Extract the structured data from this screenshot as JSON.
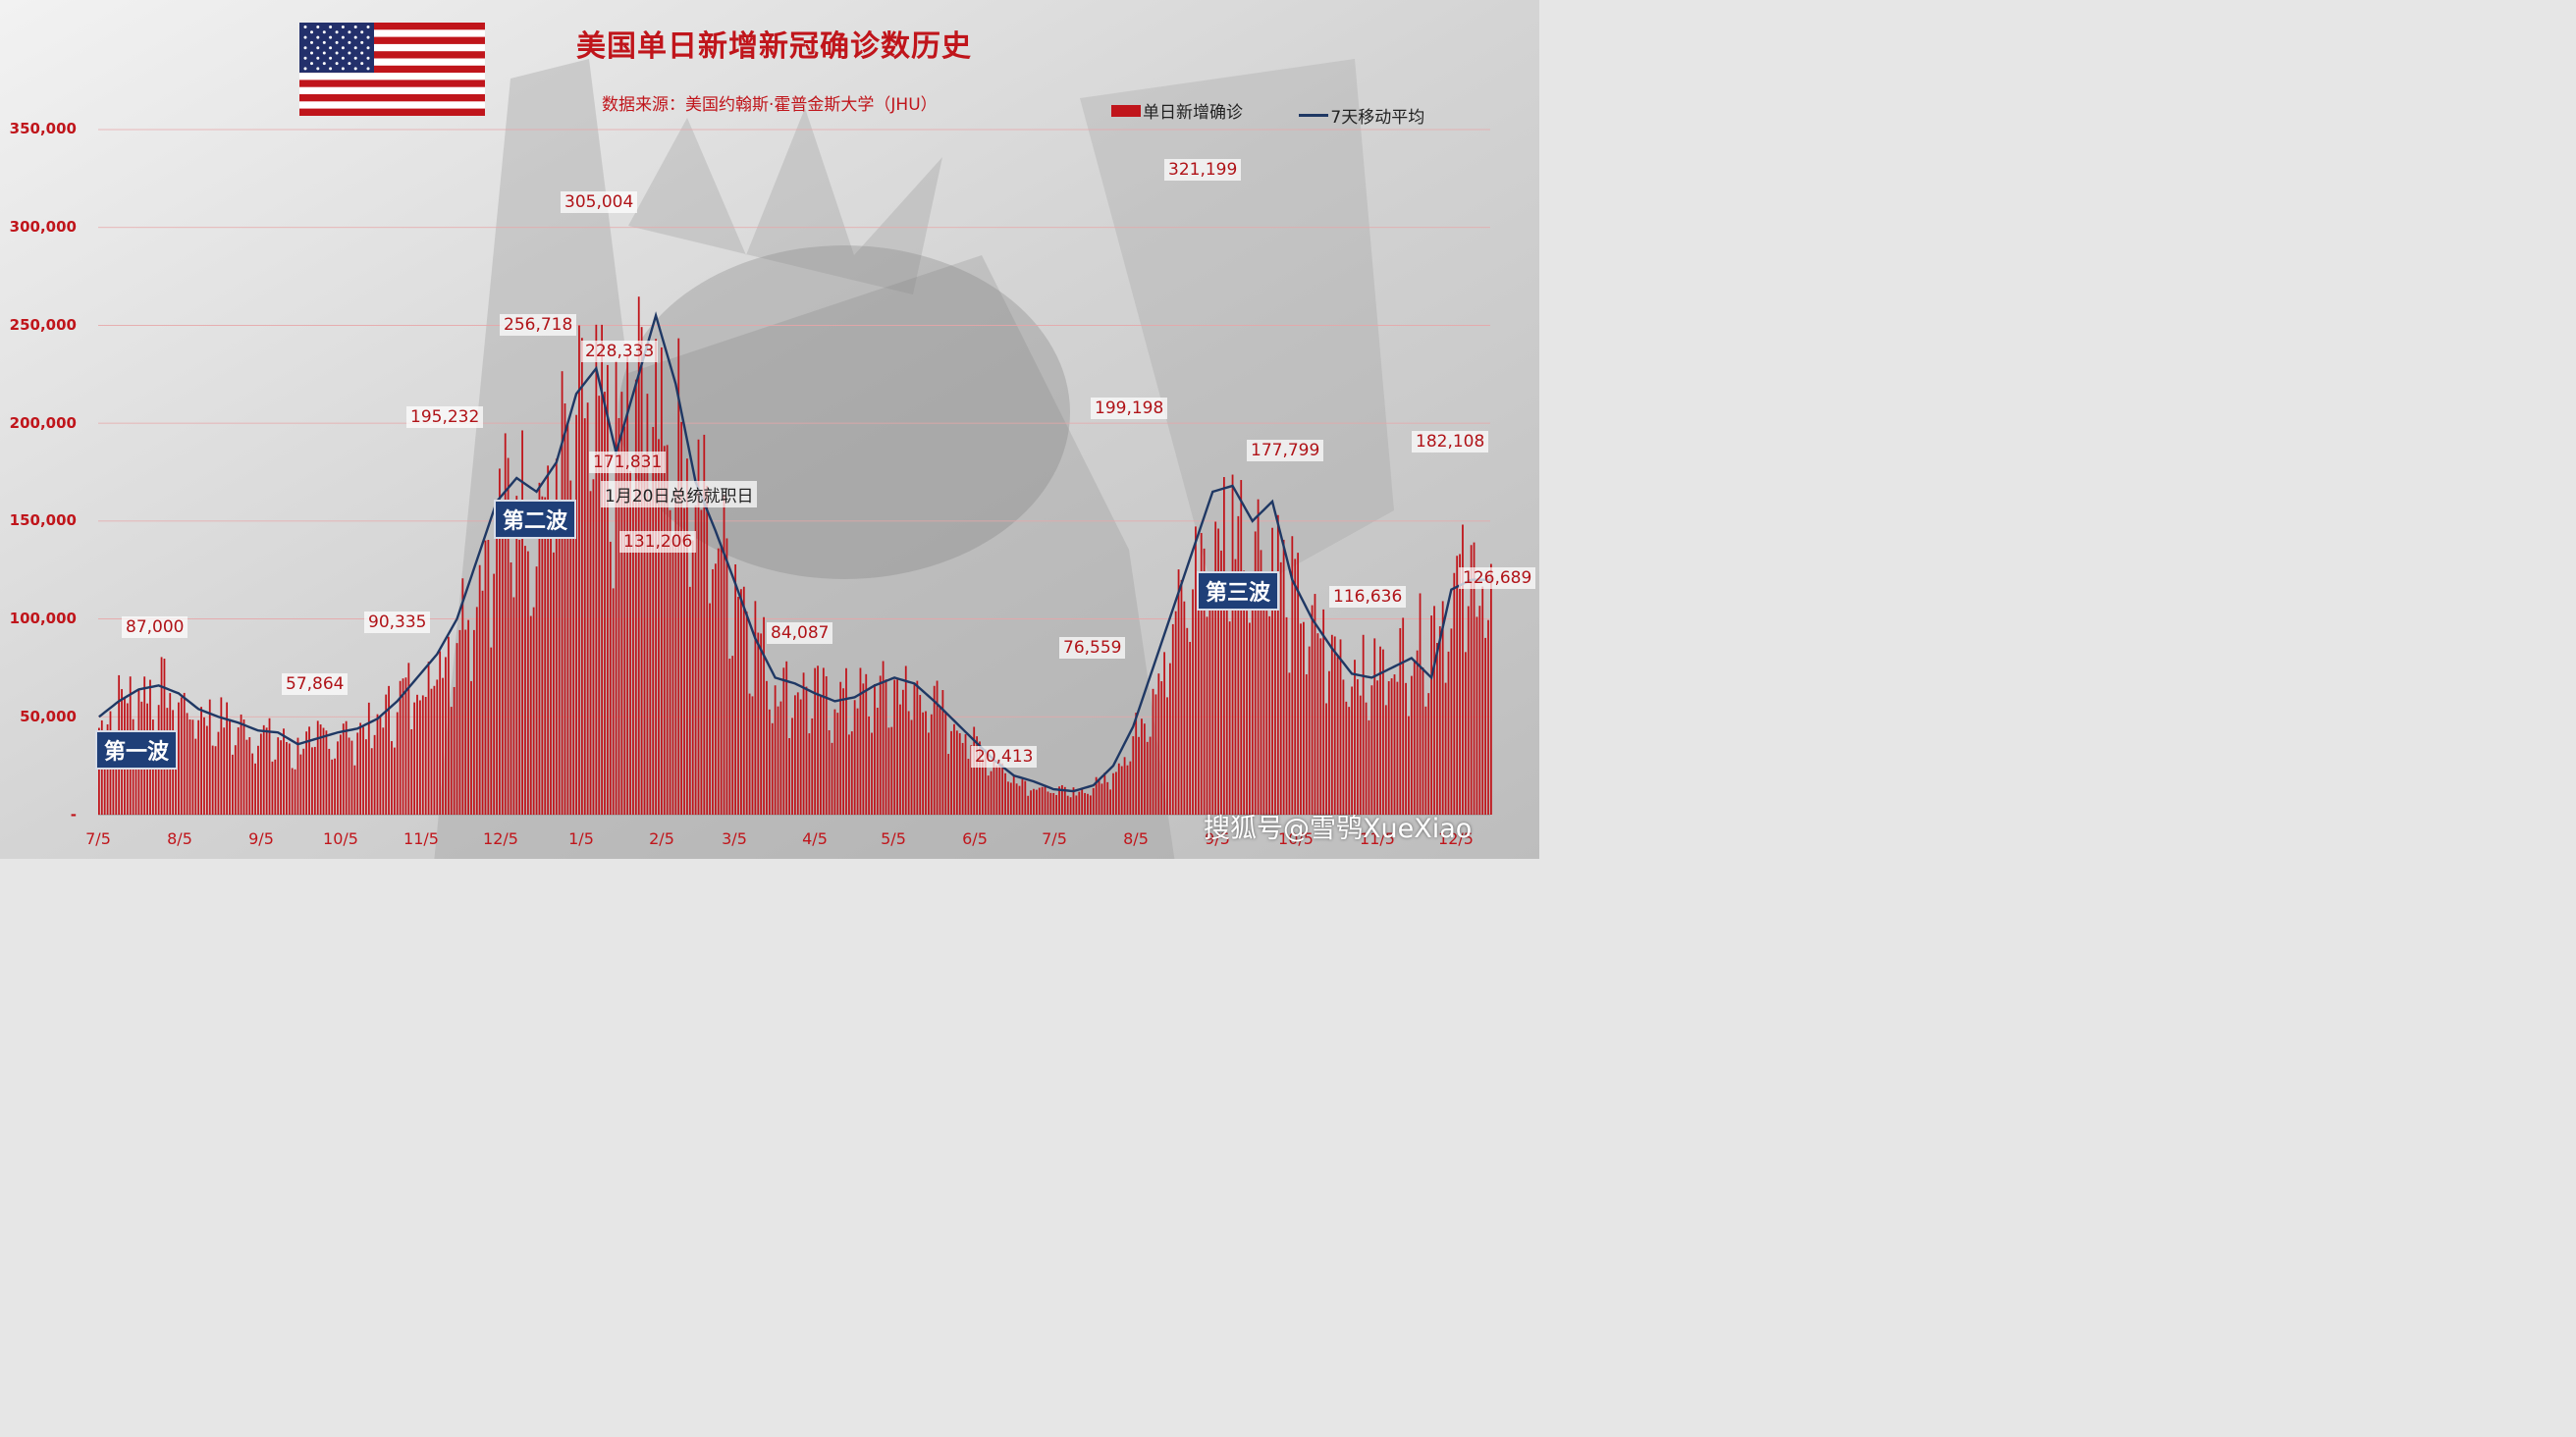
{
  "header": {
    "title": "美国单日新增新冠确诊数历史",
    "subtitle": "数据来源：美国约翰斯·霍普金斯大学（JHU）"
  },
  "legend": {
    "bar_label": "单日新增确诊",
    "line_label": "7天移动平均"
  },
  "watermark": "搜狐号@雪鸮XueXiao",
  "colors": {
    "bars": "#c0151b",
    "line": "#1f3864",
    "wave_box": "#1f3f78",
    "title": "#c0151b"
  },
  "chart_data": {
    "type": "bar",
    "title": "美国单日新增新冠确诊数历史",
    "ylim": [
      0,
      350000
    ],
    "yticks": [
      "-",
      "50,000",
      "100,000",
      "150,000",
      "200,000",
      "250,000",
      "300,000",
      "350,000"
    ],
    "xticks": [
      "7/5",
      "8/5",
      "9/5",
      "10/5",
      "11/5",
      "12/5",
      "1/5",
      "2/5",
      "3/5",
      "4/5",
      "5/5",
      "6/5",
      "7/5",
      "8/5",
      "9/5",
      "10/5",
      "11/5",
      "12/5"
    ],
    "series": [
      {
        "name": "单日新增确诊",
        "type": "bar",
        "anchors": [
          [
            0,
            45000
          ],
          [
            7,
            62000
          ],
          [
            14,
            65000
          ],
          [
            21,
            70000
          ],
          [
            28,
            60000
          ],
          [
            35,
            55000
          ],
          [
            42,
            52000
          ],
          [
            49,
            47000
          ],
          [
            56,
            44000
          ],
          [
            63,
            40000
          ],
          [
            70,
            36000
          ],
          [
            77,
            42000
          ],
          [
            84,
            43000
          ],
          [
            91,
            45000
          ],
          [
            98,
            50000
          ],
          [
            105,
            62000
          ],
          [
            112,
            72000
          ],
          [
            119,
            82000
          ],
          [
            126,
            100000
          ],
          [
            133,
            130000
          ],
          [
            140,
            160000
          ],
          [
            147,
            175000
          ],
          [
            154,
            160000
          ],
          [
            161,
            190000
          ],
          [
            168,
            210000
          ],
          [
            175,
            215000
          ],
          [
            182,
            195000
          ],
          [
            189,
            230000
          ],
          [
            196,
            230000
          ],
          [
            203,
            210000
          ],
          [
            210,
            180000
          ],
          [
            217,
            150000
          ],
          [
            224,
            130000
          ],
          [
            231,
            100000
          ],
          [
            238,
            70000
          ],
          [
            245,
            68000
          ],
          [
            252,
            65000
          ],
          [
            259,
            62000
          ],
          [
            266,
            64000
          ],
          [
            273,
            65000
          ],
          [
            280,
            68000
          ],
          [
            287,
            67000
          ],
          [
            294,
            60000
          ],
          [
            301,
            50000
          ],
          [
            308,
            40000
          ],
          [
            315,
            30000
          ],
          [
            322,
            20000
          ],
          [
            329,
            16000
          ],
          [
            336,
            13000
          ],
          [
            343,
            12000
          ],
          [
            350,
            15000
          ],
          [
            357,
            24000
          ],
          [
            364,
            40000
          ],
          [
            371,
            70000
          ],
          [
            378,
            100000
          ],
          [
            385,
            130000
          ],
          [
            392,
            150000
          ],
          [
            399,
            160000
          ],
          [
            406,
            150000
          ],
          [
            413,
            145000
          ],
          [
            420,
            120000
          ],
          [
            427,
            100000
          ],
          [
            434,
            90000
          ],
          [
            441,
            80000
          ],
          [
            448,
            75000
          ],
          [
            455,
            85000
          ],
          [
            462,
            90000
          ],
          [
            469,
            100000
          ],
          [
            476,
            120000
          ],
          [
            483,
            130000
          ],
          [
            490,
            125000
          ]
        ]
      },
      {
        "name": "7天移动平均",
        "type": "line",
        "anchors": [
          [
            0,
            50000
          ],
          [
            7,
            58000
          ],
          [
            14,
            64000
          ],
          [
            21,
            66000
          ],
          [
            28,
            62000
          ],
          [
            35,
            54000
          ],
          [
            42,
            50000
          ],
          [
            49,
            47000
          ],
          [
            56,
            43000
          ],
          [
            63,
            42000
          ],
          [
            70,
            36000
          ],
          [
            77,
            39000
          ],
          [
            84,
            42000
          ],
          [
            91,
            44000
          ],
          [
            98,
            49000
          ],
          [
            105,
            58000
          ],
          [
            112,
            70000
          ],
          [
            119,
            82000
          ],
          [
            126,
            100000
          ],
          [
            133,
            130000
          ],
          [
            140,
            160000
          ],
          [
            147,
            172000
          ],
          [
            154,
            165000
          ],
          [
            161,
            180000
          ],
          [
            168,
            215000
          ],
          [
            175,
            228000
          ],
          [
            182,
            185000
          ],
          [
            189,
            220000
          ],
          [
            196,
            255000
          ],
          [
            203,
            220000
          ],
          [
            210,
            170000
          ],
          [
            217,
            145000
          ],
          [
            224,
            118000
          ],
          [
            231,
            90000
          ],
          [
            238,
            70000
          ],
          [
            245,
            67000
          ],
          [
            252,
            62000
          ],
          [
            259,
            58000
          ],
          [
            266,
            60000
          ],
          [
            273,
            66000
          ],
          [
            280,
            70000
          ],
          [
            287,
            67000
          ],
          [
            294,
            58000
          ],
          [
            301,
            48000
          ],
          [
            308,
            38000
          ],
          [
            315,
            28000
          ],
          [
            322,
            20000
          ],
          [
            329,
            17000
          ],
          [
            336,
            13000
          ],
          [
            343,
            12000
          ],
          [
            350,
            15000
          ],
          [
            357,
            25000
          ],
          [
            364,
            45000
          ],
          [
            371,
            75000
          ],
          [
            378,
            105000
          ],
          [
            385,
            135000
          ],
          [
            392,
            165000
          ],
          [
            399,
            168000
          ],
          [
            406,
            150000
          ],
          [
            413,
            160000
          ],
          [
            420,
            120000
          ],
          [
            427,
            100000
          ],
          [
            434,
            85000
          ],
          [
            441,
            72000
          ],
          [
            448,
            70000
          ],
          [
            455,
            75000
          ],
          [
            462,
            80000
          ],
          [
            469,
            70000
          ],
          [
            476,
            115000
          ],
          [
            483,
            120000
          ],
          [
            490,
            120000
          ]
        ]
      }
    ],
    "annotations": [
      "87,000",
      "57,864",
      "90,335",
      "195,232",
      "256,718",
      "305,004",
      "228,333",
      "171,831",
      "131,206",
      "84,087",
      "20,413",
      "76,559",
      "199,198",
      "321,199",
      "177,799",
      "116,636",
      "182,108",
      "126,689"
    ],
    "event_label": "1月20日总统就职日",
    "waves": [
      "第一波",
      "第二波",
      "第三波"
    ]
  }
}
